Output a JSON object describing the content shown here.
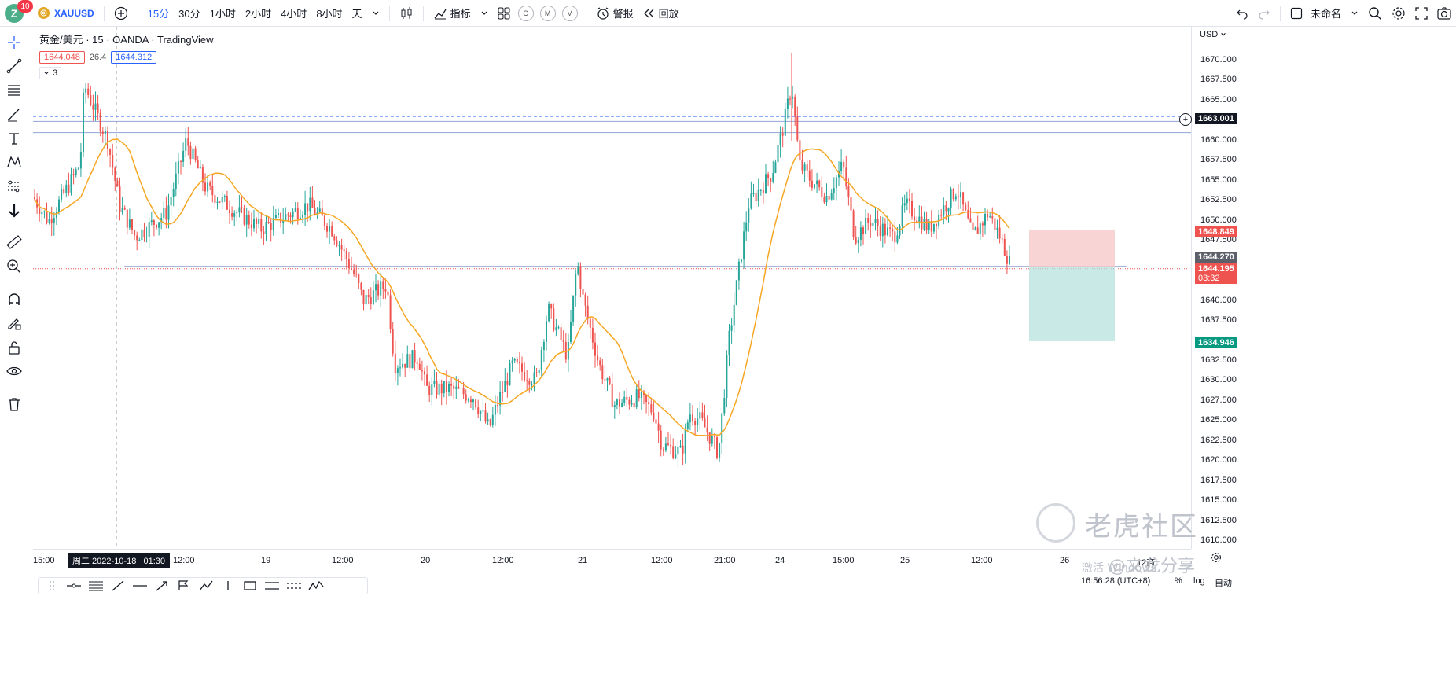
{
  "topbar": {
    "avatar_letter": "Z",
    "notification_count": "10",
    "symbol": "XAUUSD",
    "timeframes": [
      "15分",
      "30分",
      "1小时",
      "2小时",
      "4小时",
      "8小时",
      "天"
    ],
    "active_timeframe": "15分",
    "indicators_label": "指标",
    "compare_buttons": [
      "C",
      "M",
      "V"
    ],
    "alert_label": "警报",
    "replay_label": "回放",
    "layout_name": "未命名"
  },
  "legend": {
    "title": "黄金/美元 · 15 · OANDA · TradingView",
    "sell_price": "1644.048",
    "spread": "26.4",
    "buy_price": "1644.312",
    "indicator_count": "3"
  },
  "currency": "USD",
  "price_labels": [
    "1670.000",
    "1667.500",
    "1665.000",
    "1660.000",
    "1657.500",
    "1655.000",
    "1652.500",
    "1650.000",
    "1647.500",
    "1640.000",
    "1637.500",
    "1632.500",
    "1630.000",
    "1627.500",
    "1625.000",
    "1622.500",
    "1620.000",
    "1617.500",
    "1615.000",
    "1612.500",
    "1610.000"
  ],
  "tags": {
    "alert_line": "1663.001",
    "target": "1648.849",
    "last": "1644.270",
    "current": "1644.195",
    "countdown": "03:32",
    "stop": "1634.946"
  },
  "time_labels": [
    "15:00",
    "12:00",
    "19",
    "12:00",
    "20",
    "12:00",
    "21",
    "12:00",
    "21:00",
    "24",
    "15:00",
    "25",
    "12:00",
    "26",
    "12商"
  ],
  "crosshair_time": "周二 2022-10-18   01:30",
  "bottom": {
    "clock": "16:56:28 (UTC+8)",
    "percent": "%",
    "log": "log",
    "auto": "自动"
  },
  "watermark": {
    "brand": "老虎社区",
    "user": "@文龙分享",
    "activate": "激活 Windows"
  },
  "colors": {
    "up": "#26a69a",
    "down": "#ef5350",
    "ma": "#f5a623",
    "accent": "#2962ff"
  }
}
